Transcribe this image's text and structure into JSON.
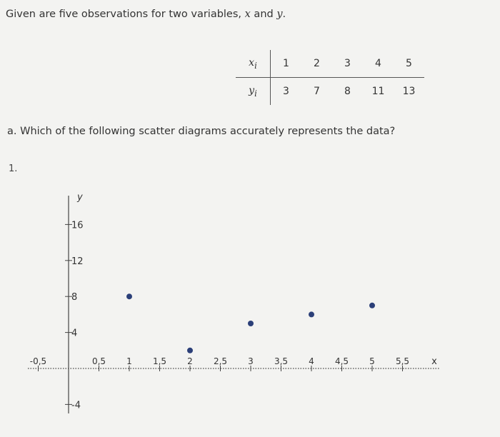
{
  "intro": {
    "text_before": "Given are five observations for two variables, ",
    "var_x": "x",
    "text_and": " and ",
    "var_y": "y",
    "text_end": "."
  },
  "table": {
    "x_label": "x",
    "x_sub": "i",
    "y_label": "y",
    "y_sub": "i",
    "x_values": [
      "1",
      "2",
      "3",
      "4",
      "5"
    ],
    "y_values": [
      "3",
      "7",
      "8",
      "11",
      "13"
    ]
  },
  "question": "a. Which of the following scatter diagrams accurately represents the data?",
  "choice_number": "1.",
  "chart_data": {
    "type": "scatter",
    "x_axis_label": "x",
    "y_axis_label": "y",
    "xlim": [
      -0.6,
      6
    ],
    "ylim": [
      -5,
      20
    ],
    "x_ticks": [
      {
        "v": -0.5,
        "label": "-0,5"
      },
      {
        "v": 0.5,
        "label": "0,5"
      },
      {
        "v": 1,
        "label": "1"
      },
      {
        "v": 1.5,
        "label": "1,5"
      },
      {
        "v": 2,
        "label": "2"
      },
      {
        "v": 2.5,
        "label": "2,5"
      },
      {
        "v": 3,
        "label": "3"
      },
      {
        "v": 3.5,
        "label": "3,5"
      },
      {
        "v": 4,
        "label": "4"
      },
      {
        "v": 4.5,
        "label": "4,5"
      },
      {
        "v": 5,
        "label": "5"
      },
      {
        "v": 5.5,
        "label": "5,5"
      }
    ],
    "y_ticks": [
      {
        "v": -4,
        "label": "-4"
      },
      {
        "v": 4,
        "label": "4"
      },
      {
        "v": 8,
        "label": "8"
      },
      {
        "v": 12,
        "label": "12"
      },
      {
        "v": 16,
        "label": "16"
      }
    ],
    "points": [
      {
        "x": 1,
        "y": 8
      },
      {
        "x": 2,
        "y": 2
      },
      {
        "x": 3,
        "y": 5
      },
      {
        "x": 4,
        "y": 6
      },
      {
        "x": 5,
        "y": 7
      }
    ],
    "point_color": "#2b3f78"
  }
}
